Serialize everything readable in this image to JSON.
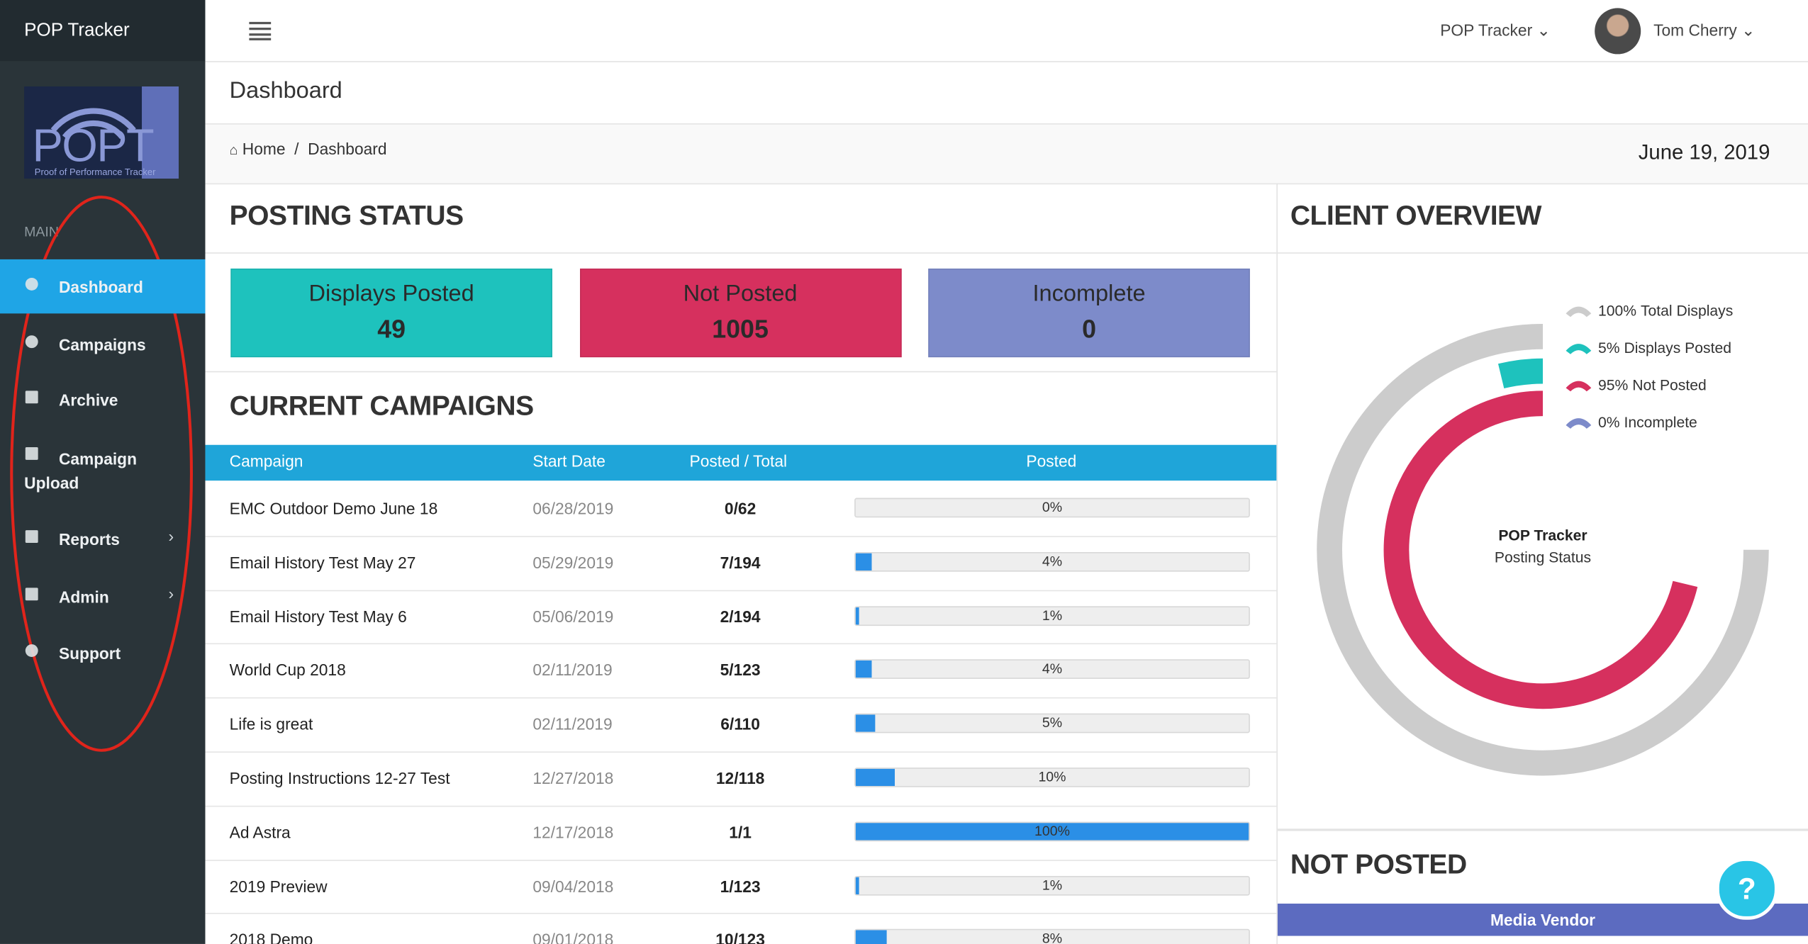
{
  "header": {
    "brand": "POP Tracker",
    "app_menu": "POP Tracker",
    "user": "Tom Cherry"
  },
  "sidebar": {
    "logo_text": "POPT",
    "logo_tagline": "Proof of Performance Tracker",
    "section": "MAIN",
    "items": [
      "Dashboard",
      "Campaigns",
      "Archive",
      "Campaign Upload",
      "Reports",
      "Admin",
      "Support"
    ]
  },
  "page": {
    "title": "Dashboard",
    "breadcrumb": [
      "Home",
      "Dashboard"
    ],
    "date": "June 19, 2019"
  },
  "posting_status": {
    "title": "POSTING STATUS",
    "cards": [
      {
        "label": "Displays Posted",
        "value": 49
      },
      {
        "label": "Not Posted",
        "value": 1005
      },
      {
        "label": "Incomplete",
        "value": 0
      }
    ]
  },
  "campaigns": {
    "title": "CURRENT CAMPAIGNS",
    "columns": [
      "Campaign",
      "Start Date",
      "Posted / Total",
      "Posted"
    ],
    "rows": [
      {
        "name": "EMC Outdoor Demo June 18",
        "start_date": "06/28/2019",
        "posted_total": "0/62",
        "posted": 0,
        "posted_label": "0%"
      },
      {
        "name": "Email History Test May 27",
        "start_date": "05/29/2019",
        "posted_total": "7/194",
        "posted": 4,
        "posted_label": "4%"
      },
      {
        "name": "Email History Test May 6",
        "start_date": "05/06/2019",
        "posted_total": "2/194",
        "posted": 1,
        "posted_label": "1%"
      },
      {
        "name": "World Cup 2018",
        "start_date": "02/11/2019",
        "posted_total": "5/123",
        "posted": 4,
        "posted_label": "4%"
      },
      {
        "name": "Life is great",
        "start_date": "02/11/2019",
        "posted_total": "6/110",
        "posted": 5,
        "posted_label": "5%"
      },
      {
        "name": "Posting Instructions 12-27 Test",
        "start_date": "12/27/2018",
        "posted_total": "12/118",
        "posted": 10,
        "posted_label": "10%"
      },
      {
        "name": "Ad Astra",
        "start_date": "12/17/2018",
        "posted_total": "1/1",
        "posted": 100,
        "posted_label": "100%"
      },
      {
        "name": "2019 Preview",
        "start_date": "09/04/2018",
        "posted_total": "1/123",
        "posted": 1,
        "posted_label": "1%"
      },
      {
        "name": "2018 Demo",
        "start_date": "09/01/2018",
        "posted_total": "10/123",
        "posted": 8,
        "posted_label": "8%"
      }
    ]
  },
  "client_overview": {
    "title": "CLIENT OVERVIEW"
  },
  "chart_data": {
    "type": "radialBar",
    "center_title": "POP Tracker",
    "center_subtitle": "Posting Status",
    "categories": [
      "Total Displays",
      "Displays Posted",
      "Not Posted",
      "Incomplete"
    ],
    "values": [
      100,
      5,
      95,
      0
    ],
    "value_labels": [
      "100%",
      "5%",
      "95%",
      "0%"
    ],
    "colors": [
      "#cccccc",
      "#1ec2bd",
      "#d6305e",
      "#7d8bca"
    ]
  },
  "not_posted": {
    "title": "NOT POSTED",
    "columns": [
      "Media Vendor"
    ]
  },
  "help": "?"
}
